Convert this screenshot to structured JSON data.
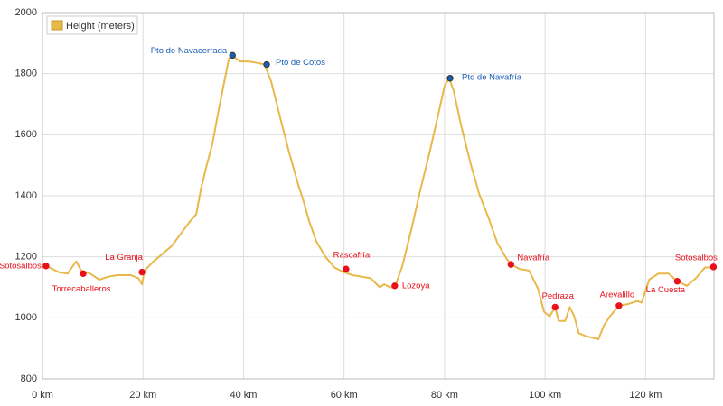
{
  "chart_data": {
    "type": "line",
    "x": [
      0.0,
      1.4,
      3.2,
      5.0,
      6.7,
      7.7,
      9.5,
      11.3,
      13.1,
      14.9,
      17.6,
      19.1,
      19.8,
      20.3,
      22.1,
      23.9,
      25.7,
      27.5,
      29.3,
      30.6,
      31.5,
      32.6,
      33.8,
      35.1,
      36.2,
      37.1,
      37.8,
      39.2,
      41.0,
      42.8,
      44.2,
      45.5,
      47.3,
      49.1,
      50.9,
      51.8,
      53.1,
      54.5,
      56.3,
      58.1,
      59.9,
      61.7,
      63.5,
      65.3,
      67.1,
      68.0,
      69.2,
      70.1,
      71.6,
      73.4,
      75.2,
      77.0,
      78.8,
      80.0,
      80.9,
      81.8,
      83.3,
      85.1,
      86.9,
      88.7,
      90.5,
      92.3,
      93.2,
      95.0,
      96.8,
      98.6,
      99.8,
      100.9,
      102.0,
      102.7,
      104.0,
      104.9,
      105.8,
      106.7,
      108.1,
      109.4,
      110.6,
      111.7,
      112.9,
      114.7,
      116.5,
      118.3,
      119.2,
      120.7,
      122.5,
      124.6,
      126.3,
      128.2,
      130.0,
      131.8,
      133.5
    ],
    "series": [
      {
        "name": "Height (meters)",
        "color": "#e8b84a",
        "values": [
          1165,
          1165,
          1150,
          1145,
          1185,
          1155,
          1145,
          1125,
          1135,
          1140,
          1140,
          1130,
          1110,
          1155,
          1185,
          1210,
          1235,
          1275,
          1315,
          1340,
          1420,
          1495,
          1570,
          1685,
          1775,
          1850,
          1860,
          1840,
          1840,
          1835,
          1830,
          1775,
          1655,
          1540,
          1435,
          1390,
          1315,
          1250,
          1200,
          1165,
          1150,
          1140,
          1135,
          1130,
          1100,
          1110,
          1100,
          1100,
          1170,
          1290,
          1420,
          1540,
          1670,
          1760,
          1785,
          1745,
          1630,
          1510,
          1405,
          1330,
          1245,
          1195,
          1175,
          1160,
          1155,
          1095,
          1020,
          1005,
          1035,
          990,
          990,
          1035,
          1005,
          950,
          940,
          935,
          930,
          975,
          1005,
          1040,
          1045,
          1055,
          1050,
          1125,
          1145,
          1145,
          1120,
          1105,
          1130,
          1165,
          1165
        ]
      }
    ],
    "points": [
      {
        "name": "Sotosalbos",
        "x": 0.7,
        "y": 1170,
        "color": "#e8101a"
      },
      {
        "name": "Torrecaballeros",
        "x": 8.1,
        "y": 1145,
        "color": "#e8101a"
      },
      {
        "name": "La Granja",
        "x": 19.8,
        "y": 1150,
        "color": "#e8101a"
      },
      {
        "name": "Pto de Navacerrada",
        "x": 37.8,
        "y": 1860,
        "color": "#1a5fb4"
      },
      {
        "name": "Pto de Cotos",
        "x": 44.6,
        "y": 1830,
        "color": "#1a5fb4"
      },
      {
        "name": "Rascafría",
        "x": 60.4,
        "y": 1160,
        "color": "#e8101a"
      },
      {
        "name": "Lozoya",
        "x": 70.1,
        "y": 1105,
        "color": "#e8101a"
      },
      {
        "name": "Pto de Navafría",
        "x": 81.1,
        "y": 1785,
        "color": "#1a5fb4"
      },
      {
        "name": "Navafría",
        "x": 93.2,
        "y": 1175,
        "color": "#e8101a"
      },
      {
        "name": "Pedraza",
        "x": 102.0,
        "y": 1035,
        "color": "#e8101a"
      },
      {
        "name": "Arevalillo",
        "x": 114.7,
        "y": 1040,
        "color": "#e8101a"
      },
      {
        "name": "La Cuesta",
        "x": 126.3,
        "y": 1120,
        "color": "#e8101a"
      },
      {
        "name": "Sotosalbos",
        "x": 133.5,
        "y": 1167,
        "color": "#e8101a"
      }
    ],
    "xlim": [
      0,
      133.6
    ],
    "ylim": [
      800,
      2000
    ],
    "xticks": [
      {
        "value": 0,
        "label": "0 km"
      },
      {
        "value": 20,
        "label": "20 km"
      },
      {
        "value": 40,
        "label": "40 km"
      },
      {
        "value": 60,
        "label": "60 km"
      },
      {
        "value": 80,
        "label": "80 km"
      },
      {
        "value": 100,
        "label": "100 km"
      },
      {
        "value": 120,
        "label": "120 km"
      }
    ],
    "yticks": [
      800,
      1000,
      1200,
      1400,
      1600,
      1800,
      2000
    ],
    "grid": true,
    "legend": "top-left"
  }
}
